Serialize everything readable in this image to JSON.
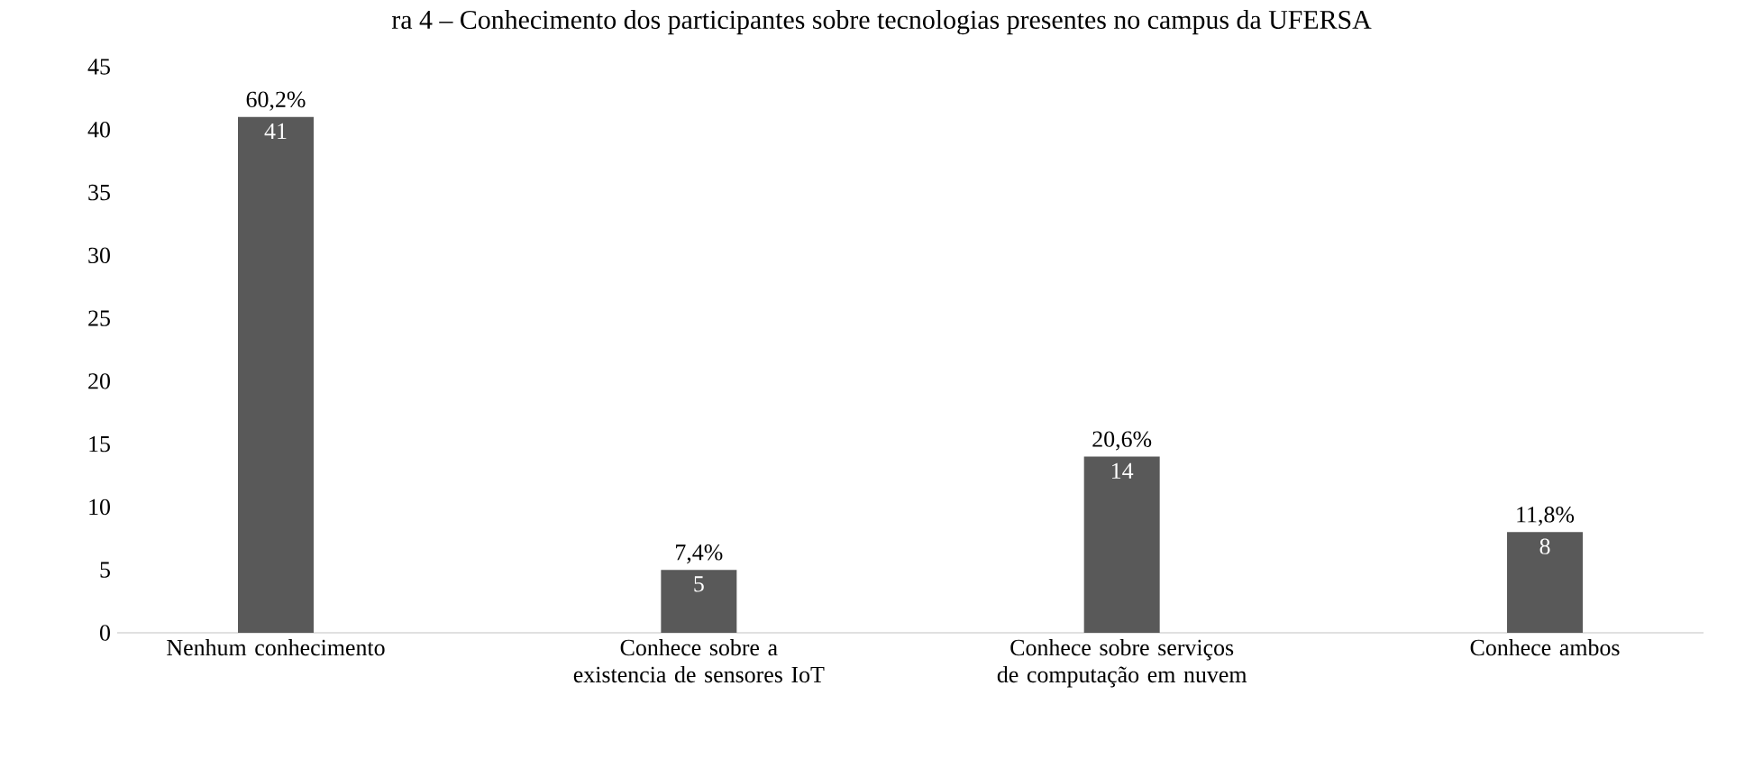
{
  "chart_data": {
    "type": "bar",
    "title": "ra 4 – Conhecimento dos participantes sobre tecnologias presentes no campus da UFERSA",
    "categories": [
      "Nenhum conhecimento",
      "Conhece sobre a existencia de sensores IoT",
      "Conhece sobre serviços de computação em nuvem",
      "Conhece ambos"
    ],
    "values": [
      41,
      5,
      14,
      8
    ],
    "color": "#595959",
    "data_labels": true,
    "annotations": [
      {
        "text": "60,2%",
        "x": "Nenhum conhecimento",
        "y": 41
      },
      {
        "text": "7,4%",
        "x": "Conhece sobre a existencia de sensores IoT",
        "y": 5
      },
      {
        "text": "20,6%",
        "x": "Conhece sobre serviços de computação em nuvem",
        "y": 14
      },
      {
        "text": "11,8%",
        "x": "Conhece ambos",
        "y": 8
      }
    ],
    "ylim": [
      0,
      45
    ],
    "yticks": [
      0,
      5,
      10,
      15,
      20,
      25,
      30,
      35,
      40,
      45
    ]
  }
}
